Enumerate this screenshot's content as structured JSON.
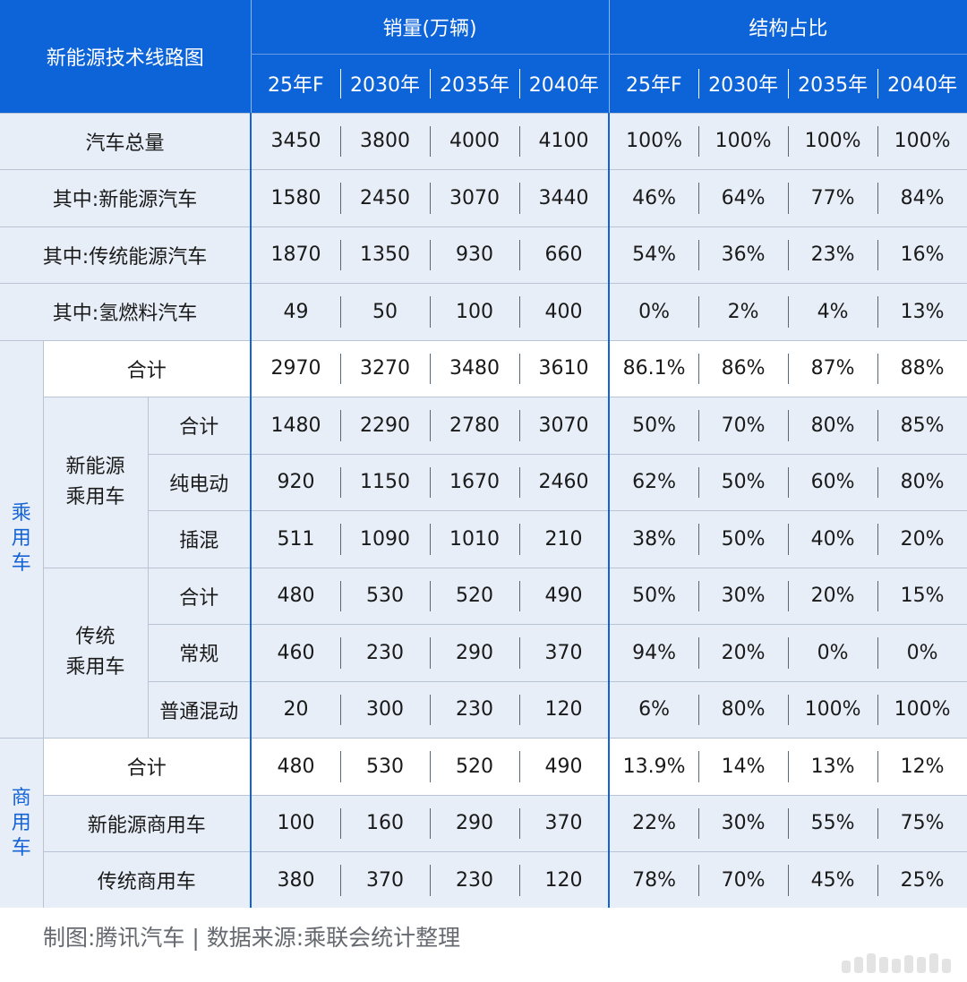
{
  "header": {
    "title": "新能源技术线路图",
    "sales_group": "销量(万辆)",
    "ratio_group": "结构占比",
    "years": [
      "25年F",
      "2030年",
      "2035年",
      "2040年"
    ]
  },
  "rows": [
    {
      "label": "汽车总量",
      "sales": [
        "3450",
        "3800",
        "4000",
        "4100"
      ],
      "ratio": [
        "100%",
        "100%",
        "100%",
        "100%"
      ]
    },
    {
      "label": "其中:新能源汽车",
      "sales": [
        "1580",
        "2450",
        "3070",
        "3440"
      ],
      "ratio": [
        "46%",
        "64%",
        "77%",
        "84%"
      ]
    },
    {
      "label": "其中:传统能源汽车",
      "sales": [
        "1870",
        "1350",
        "930",
        "660"
      ],
      "ratio": [
        "54%",
        "36%",
        "23%",
        "16%"
      ]
    },
    {
      "label": "其中:氢燃料汽车",
      "sales": [
        "49",
        "50",
        "100",
        "400"
      ],
      "ratio": [
        "0%",
        "2%",
        "4%",
        "13%"
      ]
    }
  ],
  "passenger": {
    "group_label": [
      "乘",
      "用",
      "车"
    ],
    "total": {
      "label": "合计",
      "sales": [
        "2970",
        "3270",
        "3480",
        "3610"
      ],
      "ratio": [
        "86.1%",
        "86%",
        "87%",
        "88%"
      ]
    },
    "nev": {
      "label": [
        "新能源",
        "乘用车"
      ],
      "rows": [
        {
          "label": "合计",
          "sales": [
            "1480",
            "2290",
            "2780",
            "3070"
          ],
          "ratio": [
            "50%",
            "70%",
            "80%",
            "85%"
          ]
        },
        {
          "label": "纯电动",
          "sales": [
            "920",
            "1150",
            "1670",
            "2460"
          ],
          "ratio": [
            "62%",
            "50%",
            "60%",
            "80%"
          ]
        },
        {
          "label": "插混",
          "sales": [
            "511",
            "1090",
            "1010",
            "210"
          ],
          "ratio": [
            "38%",
            "50%",
            "40%",
            "20%"
          ]
        }
      ]
    },
    "traditional": {
      "label": [
        "传统",
        "乘用车"
      ],
      "rows": [
        {
          "label": "合计",
          "sales": [
            "480",
            "530",
            "520",
            "490"
          ],
          "ratio": [
            "50%",
            "30%",
            "20%",
            "15%"
          ]
        },
        {
          "label": "常规",
          "sales": [
            "460",
            "230",
            "290",
            "370"
          ],
          "ratio": [
            "94%",
            "20%",
            "0%",
            "0%"
          ]
        },
        {
          "label": "普通混动",
          "sales": [
            "20",
            "300",
            "230",
            "120"
          ],
          "ratio": [
            "6%",
            "80%",
            "100%",
            "100%"
          ]
        }
      ]
    }
  },
  "commercial": {
    "group_label": [
      "商",
      "用",
      "车"
    ],
    "rows": [
      {
        "label": "合计",
        "sales": [
          "480",
          "530",
          "520",
          "490"
        ],
        "ratio": [
          "13.9%",
          "14%",
          "13%",
          "12%"
        ]
      },
      {
        "label": "新能源商用车",
        "sales": [
          "100",
          "160",
          "290",
          "370"
        ],
        "ratio": [
          "22%",
          "30%",
          "55%",
          "75%"
        ]
      },
      {
        "label": "传统商用车",
        "sales": [
          "380",
          "370",
          "230",
          "120"
        ],
        "ratio": [
          "78%",
          "70%",
          "45%",
          "25%"
        ]
      }
    ]
  },
  "footer": {
    "text": "制图:腾讯汽车 | 数据来源:乘联会统计整理"
  }
}
